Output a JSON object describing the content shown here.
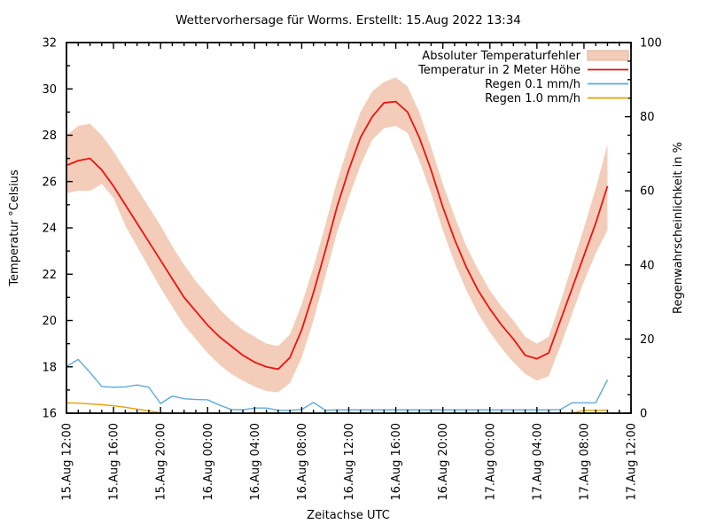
{
  "title": "Wettervorhersage für Worms. Erstellt: 15.Aug 2022 13:34",
  "colors": {
    "background": "#ffffff",
    "axis": "#000000",
    "error_band_fill": "#f3cdb9",
    "error_band_border": "#d9b29a",
    "temperature_line": "#ee1111",
    "rain01_line": "#5dabdd",
    "rain10_line": "#e5a100"
  },
  "legend": [
    {
      "label": "Absoluter Temperaturfehler",
      "swatch": "band"
    },
    {
      "label": "Temperatur in 2 Meter Höhe",
      "swatch": "line",
      "series": "temperature"
    },
    {
      "label": "Regen 0.1 mm/h",
      "swatch": "line",
      "series": "rain01"
    },
    {
      "label": "Regen 1.0 mm/h",
      "swatch": "line",
      "series": "rain10"
    }
  ],
  "chart_data": {
    "type": "line",
    "title": "Wettervorhersage für Worms. Erstellt: 15.Aug 2022 13:34",
    "grid": false,
    "legend_position": "top-right-inside",
    "x_axis": {
      "label": "Zeitachse UTC",
      "range_hours": [
        0,
        48
      ],
      "major_tick_hours": 4,
      "minor_tick_hours": 1,
      "tick_labels": [
        "15.Aug 12:00",
        "15.Aug 16:00",
        "15.Aug 20:00",
        "16.Aug 00:00",
        "16.Aug 04:00",
        "16.Aug 08:00",
        "16.Aug 12:00",
        "16.Aug 16:00",
        "16.Aug 20:00",
        "17.Aug 00:00",
        "17.Aug 04:00",
        "17.Aug 08:00",
        "17.Aug 12:00"
      ]
    },
    "y_left": {
      "label": "Temperatur °Celsius",
      "min": 16,
      "max": 32,
      "major_tick": 2,
      "minor_tick": 1,
      "tick_labels": [
        "16",
        "18",
        "20",
        "22",
        "24",
        "26",
        "28",
        "30",
        "32"
      ]
    },
    "y_right": {
      "label": "Regenwahrscheinlichkeit in %",
      "min": 0,
      "max": 100,
      "major_tick": 20,
      "minor_tick": 5,
      "tick_labels": [
        "0",
        "20",
        "40",
        "60",
        "80",
        "100"
      ]
    },
    "x_hours": [
      0,
      1,
      2,
      3,
      4,
      5,
      6,
      7,
      8,
      9,
      10,
      11,
      12,
      13,
      14,
      15,
      16,
      17,
      18,
      19,
      20,
      21,
      22,
      23,
      24,
      25,
      26,
      27,
      28,
      29,
      30,
      31,
      32,
      33,
      34,
      35,
      36,
      37,
      38,
      39,
      40,
      41,
      42,
      43,
      44,
      45,
      46
    ],
    "series": [
      {
        "name": "Absoluter Temperaturfehler",
        "type": "band",
        "axis": "left",
        "upper": [
          28.0,
          28.4,
          28.5,
          28.0,
          27.3,
          26.5,
          25.7,
          24.9,
          24.1,
          23.2,
          22.4,
          21.7,
          21.1,
          20.5,
          20.0,
          19.6,
          19.3,
          19.0,
          18.9,
          19.4,
          20.7,
          22.3,
          24.1,
          26.0,
          27.6,
          29.0,
          29.9,
          30.3,
          30.5,
          30.1,
          29.0,
          27.5,
          25.9,
          24.5,
          23.2,
          22.2,
          21.3,
          20.6,
          20.0,
          19.3,
          19.0,
          19.3,
          20.8,
          22.4,
          24.0,
          25.7,
          27.6
        ],
        "lower": [
          25.5,
          25.6,
          25.6,
          25.9,
          25.3,
          24.1,
          23.2,
          22.3,
          21.4,
          20.6,
          19.8,
          19.2,
          18.6,
          18.1,
          17.7,
          17.4,
          17.15,
          16.95,
          16.9,
          17.3,
          18.4,
          20.0,
          21.9,
          23.8,
          25.3,
          26.7,
          27.8,
          28.3,
          28.4,
          28.1,
          26.9,
          25.5,
          23.9,
          22.5,
          21.3,
          20.3,
          19.5,
          18.8,
          18.2,
          17.7,
          17.4,
          17.6,
          18.9,
          20.3,
          21.7,
          22.9,
          23.9
        ]
      },
      {
        "name": "Temperatur in 2 Meter Höhe",
        "type": "line",
        "axis": "left",
        "values": [
          26.7,
          26.9,
          27.0,
          26.5,
          25.8,
          25.0,
          24.2,
          23.4,
          22.6,
          21.8,
          21.0,
          20.4,
          19.8,
          19.3,
          18.9,
          18.5,
          18.2,
          18.0,
          17.9,
          18.4,
          19.6,
          21.2,
          23.0,
          24.9,
          26.5,
          27.9,
          28.8,
          29.4,
          29.45,
          29.0,
          27.9,
          26.5,
          24.9,
          23.5,
          22.3,
          21.3,
          20.5,
          19.8,
          19.2,
          18.5,
          18.35,
          18.6,
          20.0,
          21.4,
          22.8,
          24.2,
          25.8
        ]
      },
      {
        "name": "Regen 0.1 mm/h",
        "type": "line",
        "axis": "right",
        "values": [
          12.6,
          14.5,
          11.0,
          7.2,
          7.0,
          7.1,
          7.6,
          7.0,
          2.6,
          4.6,
          3.9,
          3.7,
          3.6,
          2.2,
          1.0,
          0.9,
          1.4,
          1.4,
          0.8,
          0.8,
          1.0,
          2.9,
          0.8,
          0.9,
          0.9,
          0.9,
          0.9,
          0.9,
          0.9,
          0.9,
          0.9,
          0.9,
          0.9,
          0.9,
          0.9,
          0.9,
          0.9,
          0.9,
          0.9,
          0.9,
          0.9,
          0.9,
          1.0,
          2.8,
          2.8,
          2.8,
          9.0
        ]
      },
      {
        "name": "Regen 1.0 mm/h",
        "type": "line",
        "axis": "right",
        "segments": [
          {
            "start_hour": 0,
            "values": [
              2.8,
              2.7,
              2.5,
              2.3,
              2.0,
              1.6,
              1.1,
              0.6,
              0.1
            ]
          },
          {
            "start_hour": 43,
            "values": [
              0.0,
              0.8,
              0.8,
              0.8
            ]
          }
        ]
      }
    ]
  }
}
